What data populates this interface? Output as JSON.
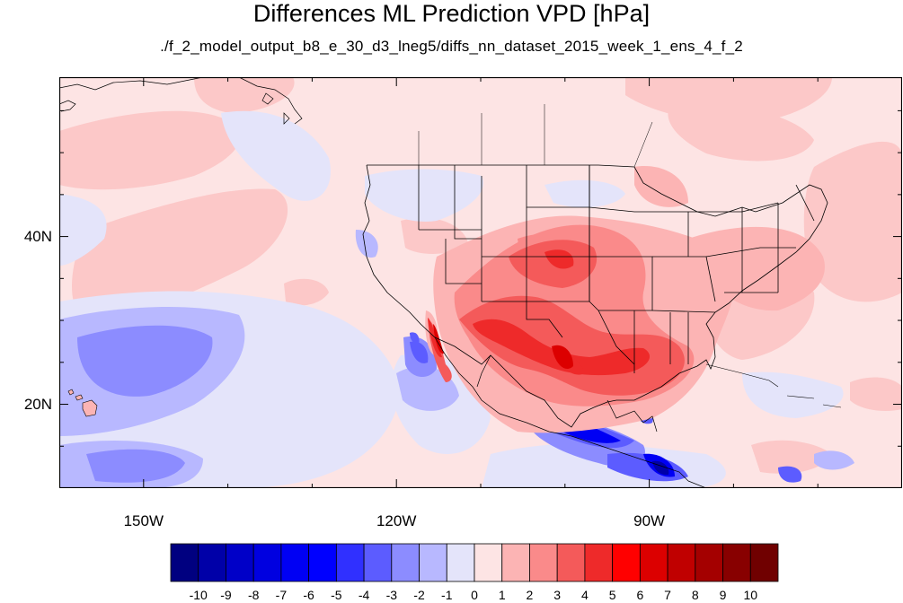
{
  "title": "Differences ML Prediction VPD [hPa]",
  "subtitle": "./f_2_model_output_b8_e_30_d3_lneg5/diffs_nn_dataset_2015_week_1_ens_4_f_2",
  "map": {
    "lon_range": [
      -160,
      -60
    ],
    "lat_range": [
      10,
      59
    ],
    "lat_ticks": [
      {
        "value": 40,
        "label": "40N"
      },
      {
        "value": 20,
        "label": "20N"
      }
    ],
    "lon_ticks": [
      {
        "value": -150,
        "label": "150W"
      },
      {
        "value": -120,
        "label": "120W"
      },
      {
        "value": -90,
        "label": "90W"
      }
    ],
    "background_level": "0..1"
  },
  "colorbar": {
    "labels": [
      "-10",
      "-9",
      "-8",
      "-7",
      "-6",
      "-5",
      "-4",
      "-3",
      "-2",
      "-1",
      "0",
      "1",
      "2",
      "3",
      "4",
      "5",
      "6",
      "7",
      "8",
      "9",
      "10"
    ],
    "colors": [
      "#000080",
      "#0000a8",
      "#0000c8",
      "#0000e0",
      "#0000f4",
      "#0000ff",
      "#3030ff",
      "#5c5cff",
      "#8c8cff",
      "#b8b8ff",
      "#e4e4fa",
      "#fde4e4",
      "#fcb4b4",
      "#fa8a8a",
      "#f45a5a",
      "#ee2a2a",
      "#ff0000",
      "#dc0000",
      "#c00000",
      "#a40000",
      "#880000",
      "#700000"
    ]
  }
}
